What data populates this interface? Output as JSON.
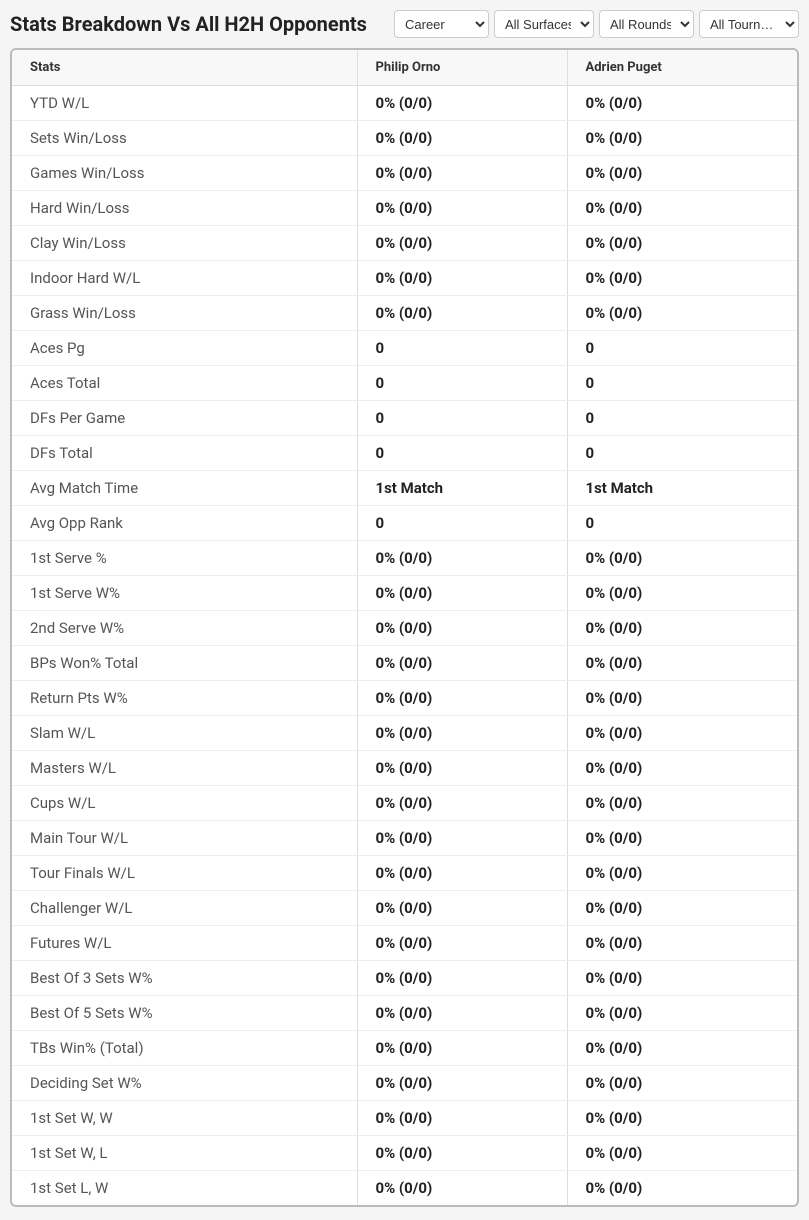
{
  "title": "Stats Breakdown Vs All H2H Opponents",
  "filters": {
    "career": "Career",
    "surfaces": "All Surfaces",
    "rounds": "All Rounds",
    "tournaments": "All Tourn…"
  },
  "columns": {
    "stats": "Stats",
    "player1": "Philip Orno",
    "player2": "Adrien Puget"
  },
  "rows": [
    {
      "stat": "YTD W/L",
      "p1": "0% (0/0)",
      "p2": "0% (0/0)"
    },
    {
      "stat": "Sets Win/Loss",
      "p1": "0% (0/0)",
      "p2": "0% (0/0)"
    },
    {
      "stat": "Games Win/Loss",
      "p1": "0% (0/0)",
      "p2": "0% (0/0)"
    },
    {
      "stat": "Hard Win/Loss",
      "p1": "0% (0/0)",
      "p2": "0% (0/0)"
    },
    {
      "stat": "Clay Win/Loss",
      "p1": "0% (0/0)",
      "p2": "0% (0/0)"
    },
    {
      "stat": "Indoor Hard W/L",
      "p1": "0% (0/0)",
      "p2": "0% (0/0)"
    },
    {
      "stat": "Grass Win/Loss",
      "p1": "0% (0/0)",
      "p2": "0% (0/0)"
    },
    {
      "stat": "Aces Pg",
      "p1": "0",
      "p2": "0"
    },
    {
      "stat": "Aces Total",
      "p1": "0",
      "p2": "0"
    },
    {
      "stat": "DFs Per Game",
      "p1": "0",
      "p2": "0"
    },
    {
      "stat": "DFs Total",
      "p1": "0",
      "p2": "0"
    },
    {
      "stat": "Avg Match Time",
      "p1": "1st Match",
      "p2": "1st Match"
    },
    {
      "stat": "Avg Opp Rank",
      "p1": "0",
      "p2": "0"
    },
    {
      "stat": "1st Serve %",
      "p1": "0% (0/0)",
      "p2": "0% (0/0)"
    },
    {
      "stat": "1st Serve W%",
      "p1": "0% (0/0)",
      "p2": "0% (0/0)"
    },
    {
      "stat": "2nd Serve W%",
      "p1": "0% (0/0)",
      "p2": "0% (0/0)"
    },
    {
      "stat": "BPs Won% Total",
      "p1": "0% (0/0)",
      "p2": "0% (0/0)"
    },
    {
      "stat": "Return Pts W%",
      "p1": "0% (0/0)",
      "p2": "0% (0/0)"
    },
    {
      "stat": "Slam W/L",
      "p1": "0% (0/0)",
      "p2": "0% (0/0)"
    },
    {
      "stat": "Masters W/L",
      "p1": "0% (0/0)",
      "p2": "0% (0/0)"
    },
    {
      "stat": "Cups W/L",
      "p1": "0% (0/0)",
      "p2": "0% (0/0)"
    },
    {
      "stat": "Main Tour W/L",
      "p1": "0% (0/0)",
      "p2": "0% (0/0)"
    },
    {
      "stat": "Tour Finals W/L",
      "p1": "0% (0/0)",
      "p2": "0% (0/0)"
    },
    {
      "stat": "Challenger W/L",
      "p1": "0% (0/0)",
      "p2": "0% (0/0)"
    },
    {
      "stat": "Futures W/L",
      "p1": "0% (0/0)",
      "p2": "0% (0/0)"
    },
    {
      "stat": "Best Of 3 Sets W%",
      "p1": "0% (0/0)",
      "p2": "0% (0/0)"
    },
    {
      "stat": "Best Of 5 Sets W%",
      "p1": "0% (0/0)",
      "p2": "0% (0/0)"
    },
    {
      "stat": "TBs Win% (Total)",
      "p1": "0% (0/0)",
      "p2": "0% (0/0)"
    },
    {
      "stat": "Deciding Set W%",
      "p1": "0% (0/0)",
      "p2": "0% (0/0)"
    },
    {
      "stat": "1st Set W, W",
      "p1": "0% (0/0)",
      "p2": "0% (0/0)"
    },
    {
      "stat": "1st Set W, L",
      "p1": "0% (0/0)",
      "p2": "0% (0/0)"
    },
    {
      "stat": "1st Set L, W",
      "p1": "0% (0/0)",
      "p2": "0% (0/0)"
    }
  ]
}
